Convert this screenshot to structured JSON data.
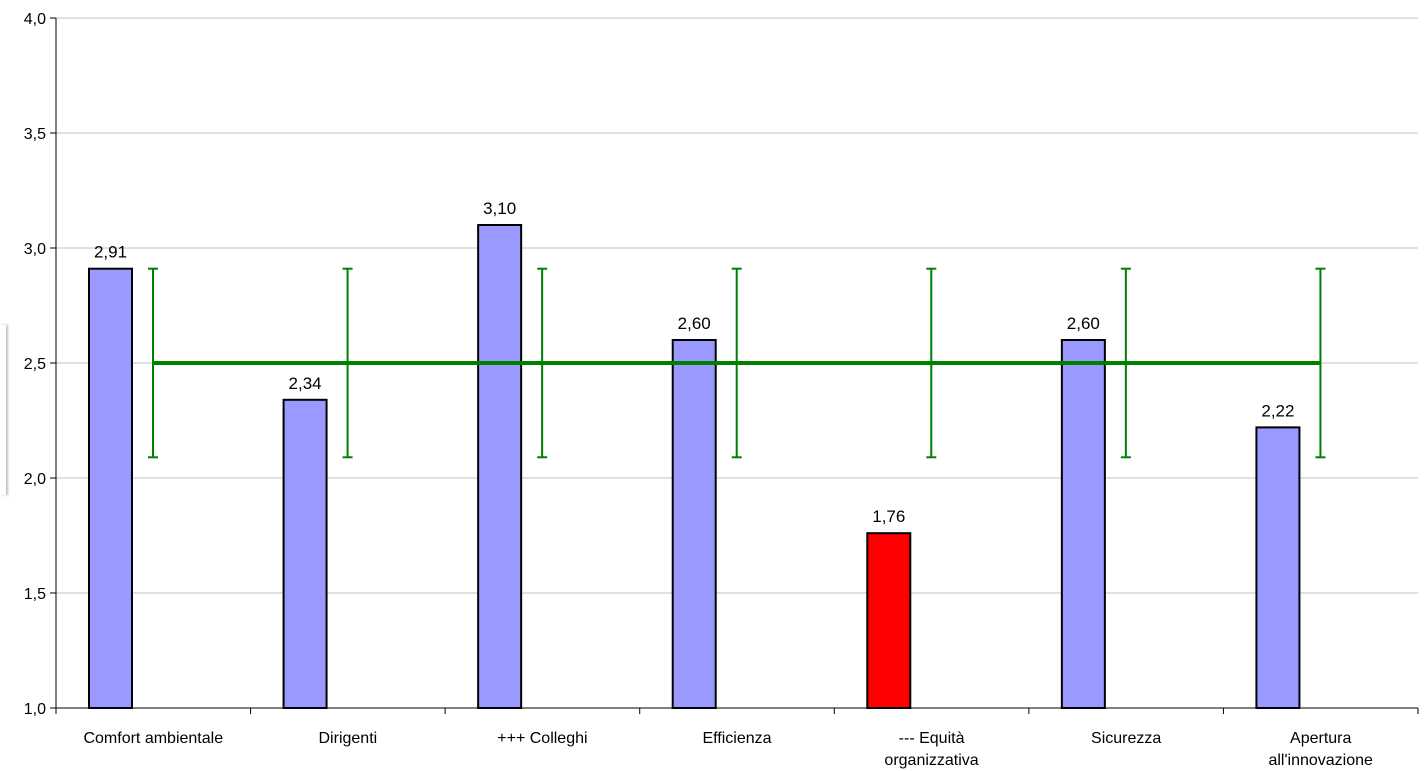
{
  "chart_data": {
    "type": "bar",
    "categories": [
      [
        "Comfort ambientale"
      ],
      [
        "Dirigenti"
      ],
      [
        "+++ Colleghi"
      ],
      [
        "Efficienza"
      ],
      [
        "--- Equità",
        "organizzativa"
      ],
      [
        "Sicurezza"
      ],
      [
        "Apertura",
        "all'innovazione"
      ]
    ],
    "values": [
      2.91,
      2.34,
      3.1,
      2.6,
      1.76,
      2.6,
      2.22
    ],
    "value_labels": [
      "2,91",
      "2,34",
      "3,10",
      "2,60",
      "1,76",
      "2,60",
      "2,22"
    ],
    "bar_colors": [
      "#9999ff",
      "#9999ff",
      "#9999ff",
      "#9999ff",
      "#ff0000",
      "#9999ff",
      "#9999ff"
    ],
    "ylim": [
      1.0,
      4.0
    ],
    "y_ticks": [
      {
        "value": 1.0,
        "label": "1,0"
      },
      {
        "value": 1.5,
        "label": "1,5"
      },
      {
        "value": 2.0,
        "label": "2,0"
      },
      {
        "value": 2.5,
        "label": "2,5"
      },
      {
        "value": 3.0,
        "label": "3,0"
      },
      {
        "value": 3.5,
        "label": "3,5"
      },
      {
        "value": 4.0,
        "label": "4,0"
      }
    ],
    "reference_line": {
      "value": 2.5,
      "color": "#008000"
    },
    "error_range": {
      "low": 2.09,
      "high": 2.91,
      "color": "#008000"
    },
    "grid": true,
    "gridline_color": "#c0c0c0",
    "bar_border_color": "#000000",
    "title": "",
    "xlabel": "",
    "ylabel": ""
  }
}
